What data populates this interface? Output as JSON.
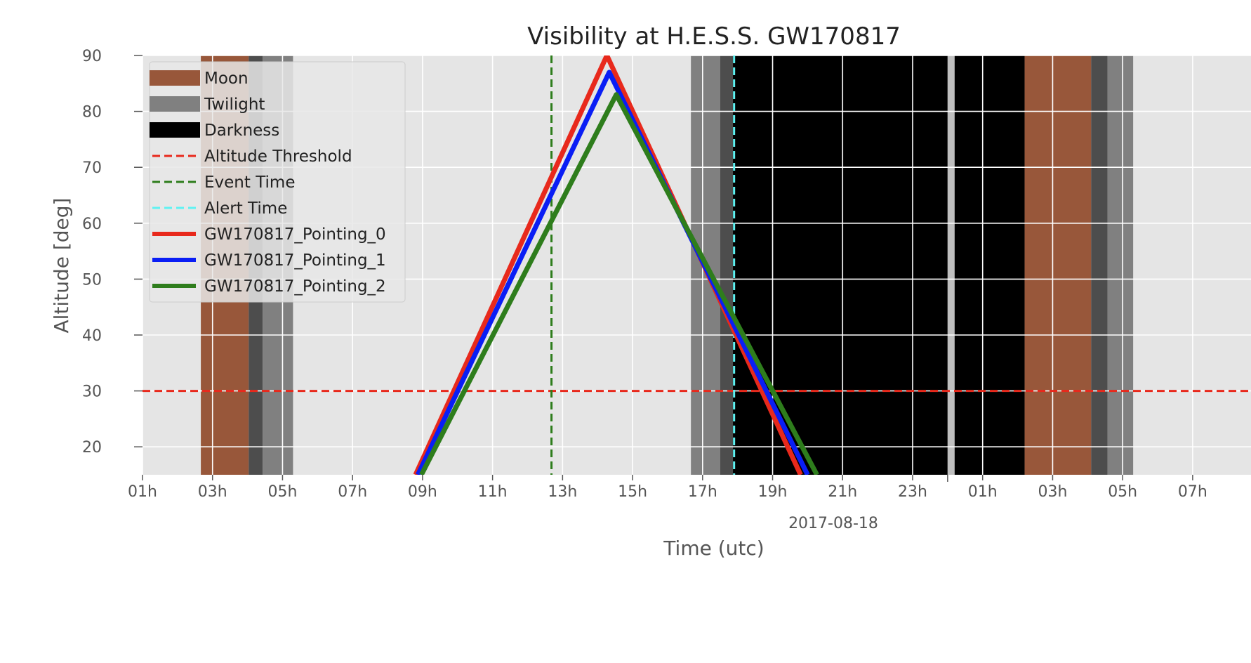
{
  "chart_data": {
    "type": "line",
    "title": "Visibility at H.E.S.S. GW170817",
    "xlabel": "Time (utc)",
    "ylabel": "Altitude [deg]",
    "date_label": "2017-08-18",
    "xlim": [
      "2017-08-17 01:00",
      "2017-08-18 08:40"
    ],
    "ylim": [
      15,
      90
    ],
    "grid": true,
    "legend_position": "top-left",
    "y_ticks": [
      20,
      30,
      40,
      50,
      60,
      70,
      80,
      90
    ],
    "x_ticks": [
      {
        "time": "2017-08-17 01:00",
        "label": "01h"
      },
      {
        "time": "2017-08-17 03:00",
        "label": "03h"
      },
      {
        "time": "2017-08-17 05:00",
        "label": "05h"
      },
      {
        "time": "2017-08-17 07:00",
        "label": "07h"
      },
      {
        "time": "2017-08-17 09:00",
        "label": "09h"
      },
      {
        "time": "2017-08-17 11:00",
        "label": "11h"
      },
      {
        "time": "2017-08-17 13:00",
        "label": "13h"
      },
      {
        "time": "2017-08-17 15:00",
        "label": "15h"
      },
      {
        "time": "2017-08-17 17:00",
        "label": "17h"
      },
      {
        "time": "2017-08-17 19:00",
        "label": "19h"
      },
      {
        "time": "2017-08-17 21:00",
        "label": "21h"
      },
      {
        "time": "2017-08-17 23:00",
        "label": "23h"
      },
      {
        "time": "2017-08-18 01:00",
        "label": "01h"
      },
      {
        "time": "2017-08-18 03:00",
        "label": "03h"
      },
      {
        "time": "2017-08-18 05:00",
        "label": "05h"
      },
      {
        "time": "2017-08-18 07:00",
        "label": "07h"
      }
    ],
    "bands": [
      {
        "kind": "moon",
        "start": "2017-08-17 02:40",
        "end": "2017-08-17 04:02",
        "color": "#98573a"
      },
      {
        "kind": "twilight-dark",
        "start": "2017-08-17 04:02",
        "end": "2017-08-17 04:26",
        "color": "#4d4d4d"
      },
      {
        "kind": "twilight",
        "start": "2017-08-17 04:26",
        "end": "2017-08-17 05:18",
        "color": "#808080"
      },
      {
        "kind": "twilight",
        "start": "2017-08-17 16:40",
        "end": "2017-08-17 17:30",
        "color": "#808080"
      },
      {
        "kind": "twilight-dark",
        "start": "2017-08-17 17:30",
        "end": "2017-08-17 17:52",
        "color": "#4d4d4d"
      },
      {
        "kind": "darkness",
        "start": "2017-08-17 17:52",
        "end": "2017-08-18 00:00",
        "color": "#000000"
      },
      {
        "kind": "gap",
        "start": "2017-08-18 00:00",
        "end": "2017-08-18 00:12",
        "color": "#bfbfbf"
      },
      {
        "kind": "darkness",
        "start": "2017-08-18 00:12",
        "end": "2017-08-18 02:12",
        "color": "#000000"
      },
      {
        "kind": "moon",
        "start": "2017-08-18 02:12",
        "end": "2017-08-18 04:06",
        "color": "#98573a"
      },
      {
        "kind": "twilight-dark",
        "start": "2017-08-18 04:06",
        "end": "2017-08-18 04:34",
        "color": "#4d4d4d"
      },
      {
        "kind": "twilight",
        "start": "2017-08-18 04:34",
        "end": "2017-08-18 05:18",
        "color": "#808080"
      }
    ],
    "threshold": {
      "value": 30,
      "color": "#e8291c"
    },
    "event_time": {
      "time": "2017-08-17 12:41",
      "color": "#2e7d1c"
    },
    "alert_time": {
      "time": "2017-08-17 17:54",
      "color": "#5ff2f2"
    },
    "series": [
      {
        "name": "GW170817_Pointing_0",
        "color": "#e8291c",
        "x": [
          "2017-08-17 08:48",
          "2017-08-17 14:16",
          "2017-08-17 19:48"
        ],
        "y": [
          15,
          90,
          15
        ]
      },
      {
        "name": "GW170817_Pointing_1",
        "color": "#0a1ef5",
        "x": [
          "2017-08-17 08:52",
          "2017-08-17 14:20",
          "2017-08-17 20:00"
        ],
        "y": [
          15,
          87,
          15
        ]
      },
      {
        "name": "GW170817_Pointing_2",
        "color": "#2e7d1c",
        "x": [
          "2017-08-17 08:58",
          "2017-08-17 14:32",
          "2017-08-17 20:16"
        ],
        "y": [
          15,
          83,
          15
        ]
      }
    ],
    "legend": [
      {
        "label": "Moon",
        "kind": "patch",
        "color": "#98573a"
      },
      {
        "label": "Twilight",
        "kind": "patch",
        "color": "#808080"
      },
      {
        "label": "Darkness",
        "kind": "patch",
        "color": "#000000"
      },
      {
        "label": "Altitude Threshold",
        "kind": "dashed",
        "color": "#e8291c"
      },
      {
        "label": "Event Time",
        "kind": "dashed",
        "color": "#2e7d1c"
      },
      {
        "label": "Alert Time",
        "kind": "dashed",
        "color": "#5ff2f2"
      },
      {
        "label": "GW170817_Pointing_0",
        "kind": "solid",
        "color": "#e8291c"
      },
      {
        "label": "GW170817_Pointing_1",
        "kind": "solid",
        "color": "#0a1ef5"
      },
      {
        "label": "GW170817_Pointing_2",
        "kind": "solid",
        "color": "#2e7d1c"
      }
    ]
  }
}
